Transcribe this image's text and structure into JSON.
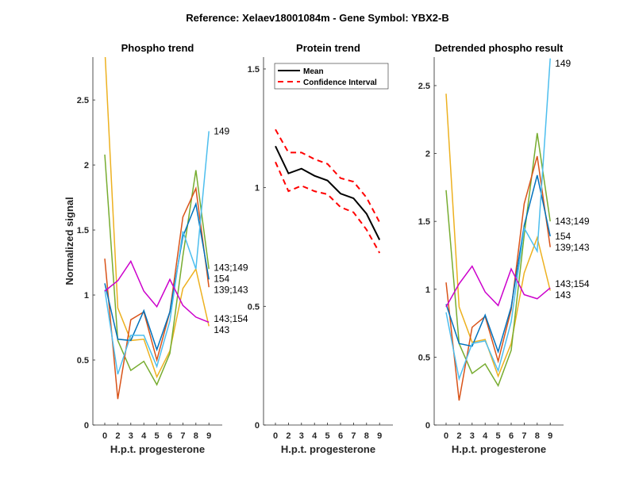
{
  "figure_title": "Reference:  Xelaev18001084m - Gene Symbol:  YBX2-B",
  "chart_data": [
    {
      "type": "line",
      "title": "Phospho trend",
      "xlabel": "H.p.t. progesterone",
      "ylabel": "Normalized signal",
      "categories": [
        "0",
        "2",
        "3",
        "4",
        "5",
        "6",
        "7",
        "8",
        "9"
      ],
      "ylim": [
        0,
        2.83
      ],
      "yticks": [
        "0",
        "0.5",
        "1",
        "1.5",
        "2",
        "2.5"
      ],
      "grid": false,
      "series": [
        {
          "name": "143",
          "color": "#EDB120",
          "values": [
            2.9,
            0.9,
            0.65,
            0.66,
            0.37,
            0.57,
            1.05,
            1.2,
            0.76
          ]
        },
        {
          "name": "143;149",
          "color": "#77AC30",
          "values": [
            2.08,
            0.65,
            0.42,
            0.49,
            0.31,
            0.55,
            1.3,
            1.96,
            1.2
          ]
        },
        {
          "name": "139;143",
          "color": "#D95319",
          "values": [
            1.28,
            0.2,
            0.81,
            0.87,
            0.5,
            0.87,
            1.6,
            1.82,
            1.06
          ]
        },
        {
          "name": "154",
          "color": "#0072BD",
          "values": [
            1.09,
            0.66,
            0.65,
            0.88,
            0.58,
            0.87,
            1.45,
            1.7,
            1.12
          ]
        },
        {
          "name": "149",
          "color": "#4DBEEE",
          "values": [
            1.04,
            0.39,
            0.69,
            0.69,
            0.45,
            0.8,
            1.49,
            1.2,
            2.26
          ]
        },
        {
          "name": "143;154",
          "color": "#CC00CC",
          "values": [
            1.03,
            1.11,
            1.26,
            1.03,
            0.91,
            1.12,
            0.92,
            0.83,
            0.79
          ]
        }
      ]
    },
    {
      "type": "line",
      "title": "Protein trend",
      "xlabel": "H.p.t. progesterone",
      "categories": [
        "0",
        "2",
        "3",
        "4",
        "5",
        "6",
        "7",
        "8",
        "9"
      ],
      "ylim": [
        0,
        1.55
      ],
      "yticks": [
        "0",
        "0.5",
        "1",
        "1.5"
      ],
      "grid": false,
      "legend": "top-left",
      "series": [
        {
          "name": "Mean",
          "color": "#000000",
          "style": "solid",
          "values": [
            1.175,
            1.06,
            1.08,
            1.05,
            1.03,
            0.975,
            0.955,
            0.89,
            0.78
          ]
        },
        {
          "name": "Confidence Interval",
          "color": "#FF0000",
          "style": "dashed",
          "values": [
            1.245,
            1.148,
            1.148,
            1.12,
            1.1,
            1.04,
            1.025,
            0.958,
            0.854
          ]
        },
        {
          "color": "#FF0000",
          "style": "dashed",
          "values": [
            1.108,
            0.985,
            1.008,
            0.985,
            0.972,
            0.918,
            0.896,
            0.823,
            0.725
          ]
        }
      ]
    },
    {
      "type": "line",
      "title": "Detrended phospho result",
      "xlabel": "H.p.t. progesterone",
      "categories": [
        "0",
        "2",
        "3",
        "4",
        "5",
        "6",
        "7",
        "8",
        "9"
      ],
      "ylim": [
        0,
        2.71
      ],
      "yticks": [
        "0",
        "0.5",
        "1",
        "1.5",
        "2",
        "2.5"
      ],
      "grid": false,
      "series": [
        {
          "name": "143",
          "color": "#EDB120",
          "values": [
            2.44,
            0.87,
            0.61,
            0.63,
            0.36,
            0.6,
            1.12,
            1.38,
            0.99
          ]
        },
        {
          "name": "143;149",
          "color": "#77AC30",
          "values": [
            1.73,
            0.6,
            0.38,
            0.45,
            0.29,
            0.55,
            1.4,
            2.15,
            1.5
          ]
        },
        {
          "name": "139;143",
          "color": "#D95319",
          "values": [
            1.05,
            0.18,
            0.72,
            0.8,
            0.47,
            0.85,
            1.63,
            1.98,
            1.31
          ]
        },
        {
          "name": "154",
          "color": "#0072BD",
          "values": [
            0.89,
            0.6,
            0.58,
            0.81,
            0.54,
            0.87,
            1.47,
            1.84,
            1.39
          ]
        },
        {
          "name": "149",
          "color": "#4DBEEE",
          "values": [
            0.83,
            0.34,
            0.6,
            0.62,
            0.4,
            0.76,
            1.45,
            1.28,
            2.7
          ]
        },
        {
          "name": "143;154",
          "color": "#CC00CC",
          "values": [
            0.87,
            1.04,
            1.17,
            0.98,
            0.88,
            1.15,
            0.96,
            0.93,
            1.01
          ]
        }
      ]
    }
  ]
}
